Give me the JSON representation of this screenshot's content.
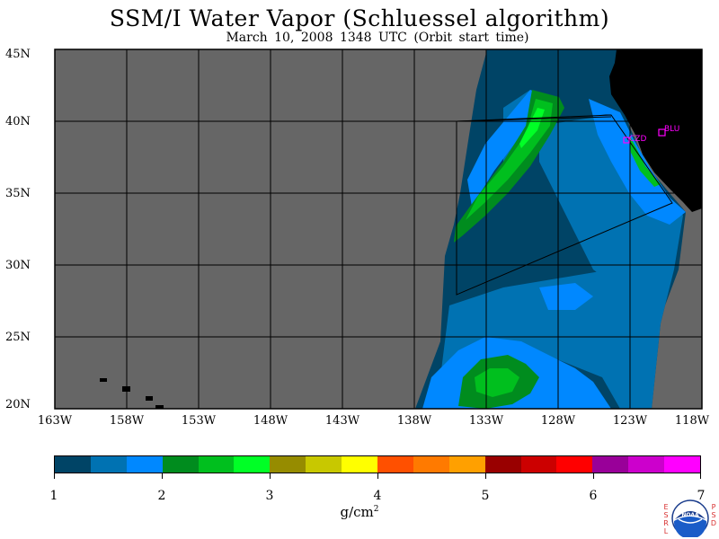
{
  "title": "SSM/I Water Vapor (Schluessel algorithm)",
  "subtitle": "March 10, 2008  1348 UTC  (Orbit start time)",
  "map": {
    "lat_labels": [
      "45N",
      "40N",
      "35N",
      "30N",
      "25N",
      "20N"
    ],
    "lon_labels": [
      "163W",
      "158W",
      "153W",
      "148W",
      "143W",
      "138W",
      "133W",
      "128W",
      "123W",
      "118W"
    ],
    "stations": [
      "CZD",
      "BLU"
    ],
    "colors": {
      "no_data": "#666666",
      "land": "#000000",
      "station": "#ff00ff",
      "grid": "#000000"
    }
  },
  "colorbar": {
    "ticks": [
      "1",
      "2",
      "3",
      "4",
      "5",
      "6",
      "7"
    ],
    "units": "g/cm",
    "units_exp": "2",
    "colors": [
      "#004466",
      "#0072b2",
      "#0088ff",
      "#008c1e",
      "#00bf1e",
      "#00ff26",
      "#968c00",
      "#c8c800",
      "#ffff00",
      "#ff5000",
      "#ff7a00",
      "#ffa000",
      "#990000",
      "#cc0000",
      "#ff0000",
      "#990099",
      "#cc00cc",
      "#ff00ff"
    ]
  },
  "logo": {
    "left_letters": [
      "E",
      "S",
      "R",
      "L"
    ],
    "right_letters": [
      "P",
      "S",
      "D"
    ],
    "badge_text": "NOAA"
  }
}
